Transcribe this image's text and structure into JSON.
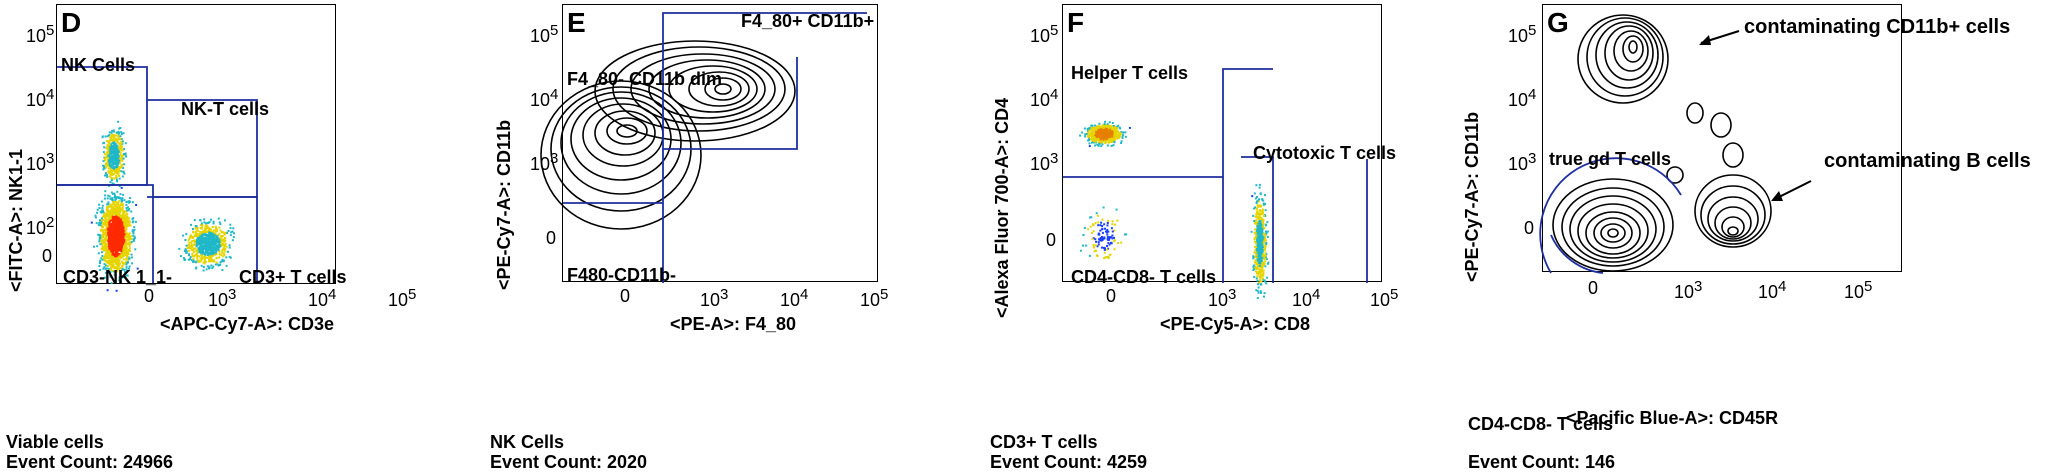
{
  "chart_data": [
    {
      "type": "scatter",
      "panel": "D",
      "xlabel": "<APC-Cy7-A>: CD3e",
      "ylabel": "<FITC-A>: NK1-1",
      "x_ticks": [
        "0",
        "10^3",
        "10^4",
        "10^5"
      ],
      "y_ticks": [
        "0",
        "10^2",
        "10^3",
        "10^4",
        "10^5"
      ],
      "gates": [
        "NK Cells",
        "NK-T cells",
        "CD3-NK 1_1-",
        "CD3+ T cells"
      ],
      "parent": "Viable cells",
      "event_count": "Event Count: 24966"
    },
    {
      "type": "contour",
      "panel": "E",
      "xlabel": "<PE-A>: F4_80",
      "ylabel": "<PE-Cy7-A>: CD11b",
      "x_ticks": [
        "0",
        "10^3",
        "10^4",
        "10^5"
      ],
      "y_ticks": [
        "0",
        "10^3",
        "10^4",
        "10^5"
      ],
      "gates": [
        "F4_80+ CD11b+",
        "F4_80- CD11b dim",
        "F480-CD11b-"
      ],
      "parent": "NK Cells",
      "event_count": "Event Count: 2020"
    },
    {
      "type": "scatter",
      "panel": "F",
      "xlabel": "<PE-Cy5-A>: CD8",
      "ylabel": "<Alexa Fluor 700-A>: CD4",
      "x_ticks": [
        "0",
        "10^3",
        "10^4",
        "10^5"
      ],
      "y_ticks": [
        "0",
        "10^3",
        "10^4",
        "10^5"
      ],
      "gates": [
        "Helper T cells",
        "Cytotoxic T cells",
        "CD4-CD8- T cells"
      ],
      "parent": "CD3+ T cells",
      "event_count": "Event Count: 4259"
    },
    {
      "type": "contour",
      "panel": "G",
      "xlabel": "<Pacific Blue-A>: CD45R",
      "ylabel": "<PE-Cy7-A>: CD11b",
      "x_ticks": [
        "0",
        "10^3",
        "10^4",
        "10^5"
      ],
      "y_ticks": [
        "0",
        "10^4",
        "10^5"
      ],
      "gates": [
        "true gd T cells"
      ],
      "annotations": [
        "contaminating CD11b+ cells",
        "contaminating B cells"
      ],
      "parent": "CD4-CD8- T cells",
      "event_count": "Event Count: 146"
    }
  ],
  "panels": {
    "d": {
      "letter": "D",
      "gate_nk": "NK Cells",
      "gate_nkt": "NK-T cells",
      "gate_dn": "CD3-NK 1_1-",
      "gate_t": "CD3+ T cells",
      "xlabel": "<APC-Cy7-A>: CD3e",
      "ylabel": "<FITC-A>: NK1-1",
      "parent": "Viable cells",
      "count": "Event Count: 24966"
    },
    "e": {
      "letter": "E",
      "gate_pos": "F4_80+ CD11b+",
      "gate_dim": "F4_80- CD11b dim",
      "gate_neg": "F480-CD11b-",
      "xlabel": "<PE-A>: F4_80",
      "ylabel": "<PE-Cy7-A>: CD11b",
      "parent": "NK Cells",
      "count": "Event Count: 2020"
    },
    "f": {
      "letter": "F",
      "gate_help": "Helper T cells",
      "gate_cyto": "Cytotoxic T cells",
      "gate_dn": "CD4-CD8- T cells",
      "xlabel": "<PE-Cy5-A>: CD8",
      "ylabel": "<Alexa Fluor 700-A>: CD4",
      "parent": "CD3+ T cells",
      "count": "Event Count: 4259"
    },
    "g": {
      "letter": "G",
      "gate_gd": "true gd T cells",
      "annot_cd11b": "contaminating CD11b+ cells",
      "annot_b": "contaminating B cells",
      "xlabel": "<Pacific Blue-A>: CD45R",
      "ylabel": "<PE-Cy7-A>: CD11b",
      "parent": "CD4-CD8- T cells",
      "count": "Event Count: 146"
    }
  },
  "ticks": {
    "zero": "0",
    "e": "10",
    "p2": "2",
    "p3": "3",
    "p4": "4",
    "p5": "5"
  },
  "colors": {
    "gate": "#1f2fa0",
    "contour": "#000000"
  }
}
